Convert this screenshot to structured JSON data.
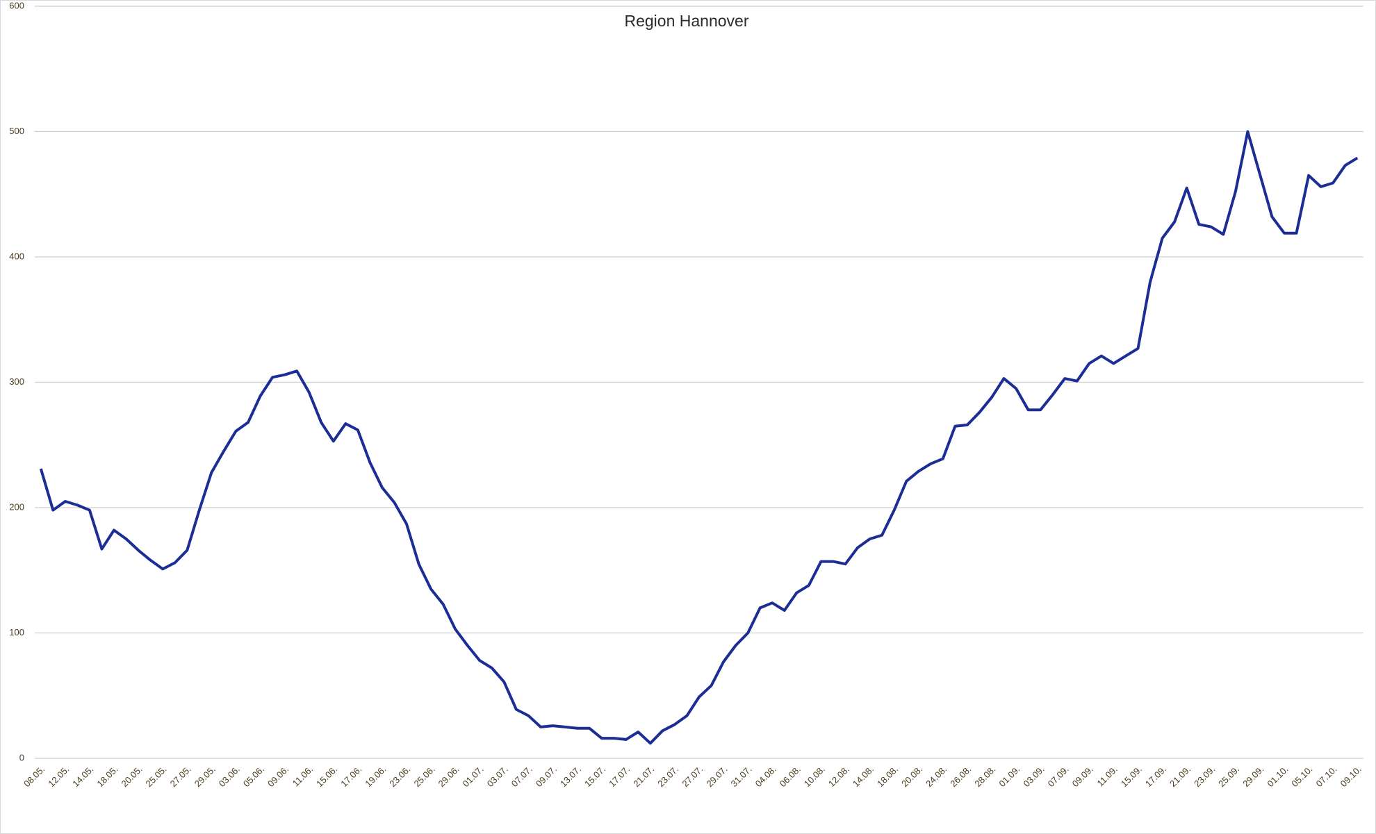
{
  "chart_data": {
    "type": "line",
    "title": "Region Hannover",
    "categories": [
      "08.05.",
      null,
      "12.05.",
      null,
      "14.05.",
      null,
      "18.05.",
      null,
      "20.05.",
      null,
      "25.05.",
      null,
      "27.05.",
      null,
      "29.05.",
      null,
      "03.06.",
      null,
      "05.06.",
      null,
      "09.06.",
      null,
      "11.06.",
      null,
      "15.06.",
      null,
      "17.06.",
      null,
      "19.06.",
      null,
      "23.06.",
      null,
      "25.06.",
      null,
      "29.06.",
      null,
      "01.07.",
      null,
      "03.07.",
      null,
      "07.07.",
      null,
      "09.07.",
      null,
      "13.07.",
      null,
      "15.07.",
      null,
      "17.07.",
      null,
      "21.07.",
      null,
      "23.07.",
      null,
      "27.07.",
      null,
      "29.07.",
      null,
      "31.07.",
      null,
      "04.08.",
      null,
      "06.08.",
      null,
      "10.08.",
      null,
      "12.08.",
      null,
      "14.08.",
      null,
      "18.08.",
      null,
      "20.08.",
      null,
      "24.08.",
      null,
      "26.08.",
      null,
      "28.08.",
      null,
      "01.09.",
      null,
      "03.09.",
      null,
      "07.09.",
      null,
      "09.09.",
      null,
      "11.09.",
      null,
      "15.09.",
      null,
      "17.09.",
      null,
      "21.09.",
      null,
      "23.09.",
      null,
      "25.09.",
      null,
      "29.09.",
      null,
      "01.10.",
      null,
      "05.10.",
      null,
      "07.10.",
      null,
      "09.10."
    ],
    "values": [
      231,
      198,
      205,
      202,
      198,
      167,
      182,
      175,
      166,
      158,
      151,
      156,
      166,
      198,
      228,
      245,
      261,
      268,
      289,
      304,
      306,
      309,
      292,
      268,
      253,
      267,
      262,
      236,
      216,
      204,
      187,
      155,
      135,
      123,
      103,
      90,
      78,
      72,
      61,
      39,
      34,
      25,
      26,
      25,
      24,
      24,
      16,
      16,
      15,
      21,
      12,
      22,
      27,
      34,
      49,
      58,
      77,
      90,
      100,
      120,
      124,
      118,
      132,
      138,
      157,
      157,
      155,
      168,
      175,
      178,
      198,
      221,
      229,
      235,
      239,
      265,
      266,
      276,
      288,
      303,
      295,
      278,
      278,
      290,
      303,
      301,
      315,
      321,
      315,
      321,
      327,
      380,
      415,
      428,
      455,
      426,
      424,
      418,
      452,
      500,
      466,
      432,
      419,
      419,
      465,
      456,
      459,
      473,
      479
    ],
    "color": "#1c2e96",
    "ylim": [
      0,
      600
    ],
    "yticks": [
      0,
      100,
      200,
      300,
      400,
      500,
      600
    ],
    "grid": true
  }
}
